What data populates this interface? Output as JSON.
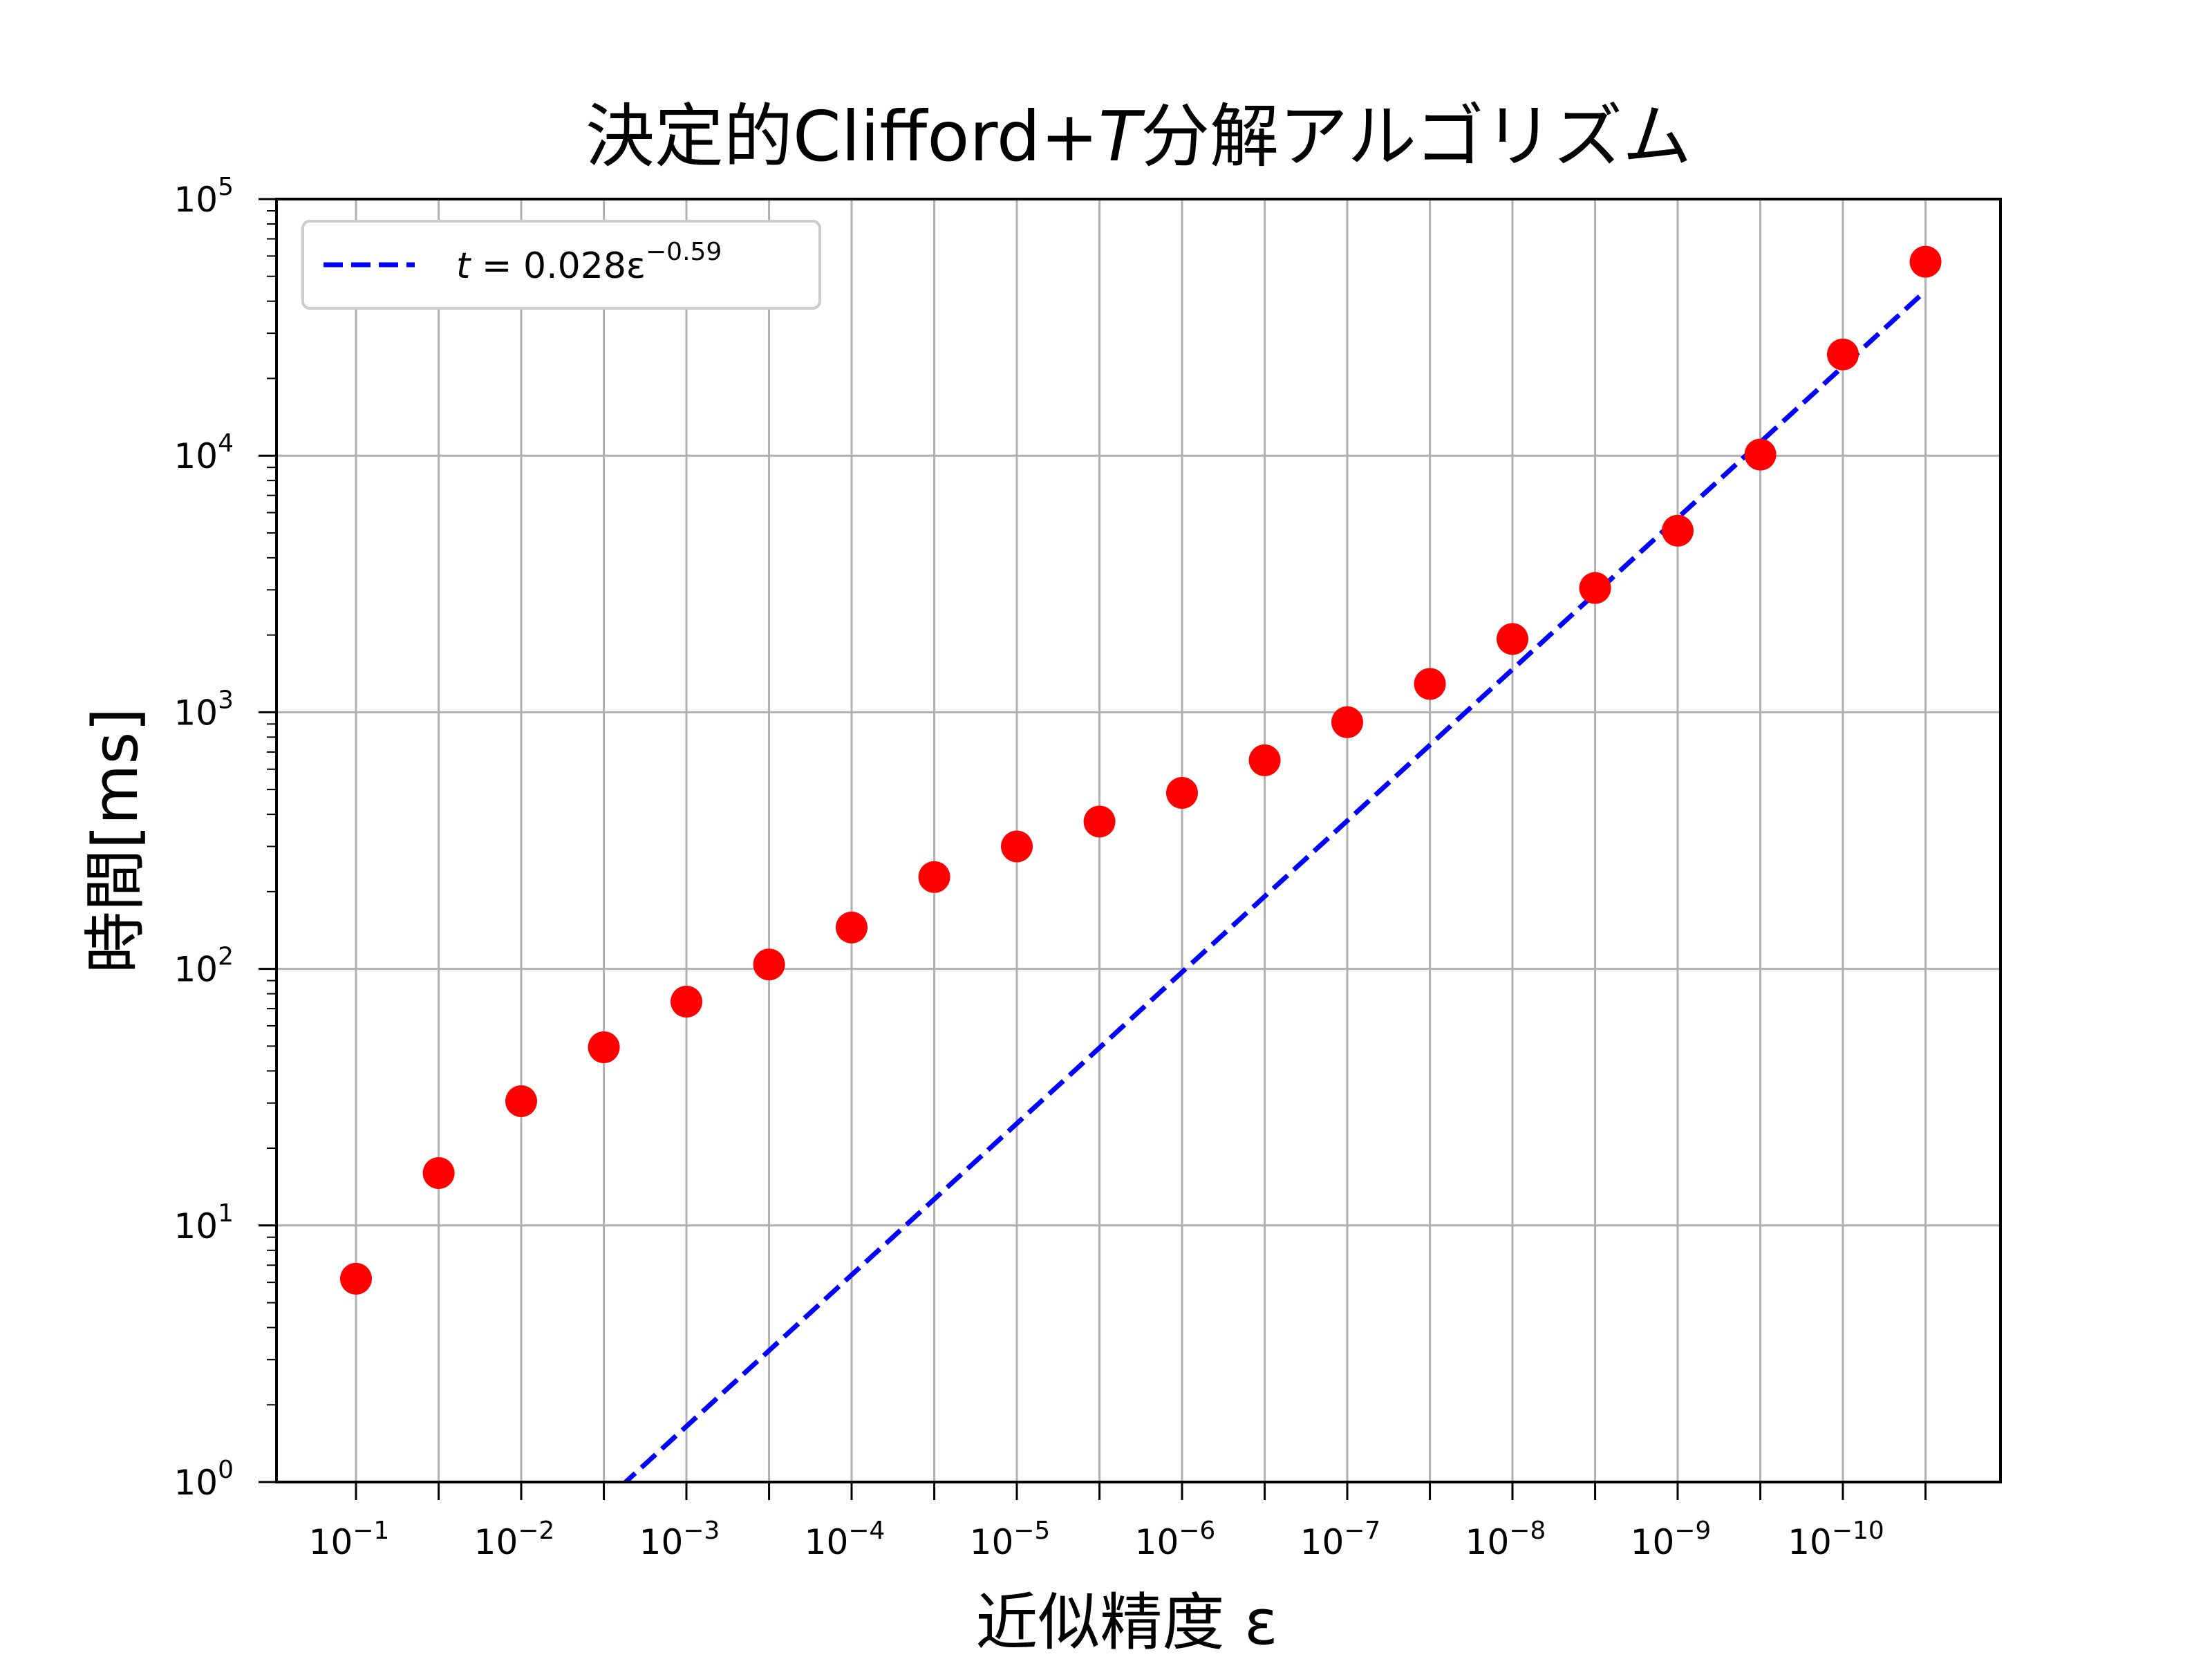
{
  "chart_data": {
    "type": "scatter",
    "title": "決定的Clifford+T分解アルゴリズム",
    "title_parts": {
      "prefix": "決定的Clifford+",
      "italic": "T",
      "suffix": "分解アルゴリズム"
    },
    "xlabel": "近似精度  ε",
    "ylabel": "時間[ms]",
    "x_scale": "log (reversed)",
    "y_scale": "log",
    "x_base_label": "10",
    "x_tick_exponents": [
      "−1",
      "−2",
      "−3",
      "−4",
      "−5",
      "−6",
      "−7",
      "−8",
      "−9",
      "−10"
    ],
    "y_base_label": "10",
    "y_tick_exponents": [
      "0",
      "1",
      "2",
      "3",
      "4",
      "5"
    ],
    "ylim": [
      1,
      100000
    ],
    "grid": true,
    "legend_position": "top-left",
    "series": [
      {
        "kind": "points",
        "color": "#ff0000",
        "x": [
          0.1,
          0.0316,
          0.01,
          0.00316,
          0.001,
          0.000316,
          0.0001,
          3.16e-05,
          1e-05,
          3.16e-06,
          1e-06,
          3.16e-07,
          1e-07,
          3.16e-08,
          1e-08,
          3.16e-09,
          1e-09,
          3.16e-10,
          1e-10,
          3.16e-11
        ],
        "y": [
          6.2,
          16,
          30.5,
          49.5,
          74.5,
          104,
          145,
          228,
          300,
          375,
          485,
          650,
          915,
          1290,
          1930,
          3050,
          5100,
          10100,
          24800,
          57000
        ]
      },
      {
        "kind": "fit",
        "color": "#0000ff",
        "style": "dashed",
        "coefficient": 0.028,
        "exponent": -0.59,
        "legend_label": {
          "lhs": "t",
          "equals": " = ",
          "body": "0.028ε",
          "power": "−0.59"
        }
      }
    ]
  }
}
